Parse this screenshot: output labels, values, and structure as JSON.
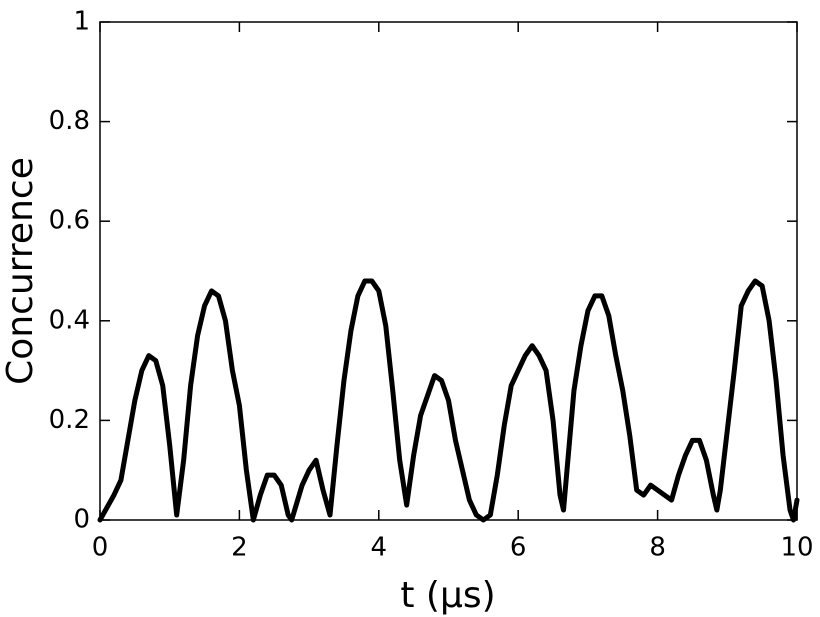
{
  "chart_data": {
    "type": "line",
    "xlabel": "t (μs)",
    "ylabel": "Concurrence",
    "x": [
      0,
      0.2,
      0.3,
      0.4,
      0.5,
      0.6,
      0.7,
      0.8,
      0.9,
      1.0,
      1.1,
      1.2,
      1.3,
      1.4,
      1.5,
      1.6,
      1.7,
      1.8,
      1.9,
      2.0,
      2.1,
      2.2,
      2.3,
      2.4,
      2.5,
      2.6,
      2.7,
      2.75,
      2.9,
      3.0,
      3.1,
      3.2,
      3.3,
      3.4,
      3.5,
      3.6,
      3.7,
      3.8,
      3.9,
      4.0,
      4.1,
      4.2,
      4.3,
      4.4,
      4.5,
      4.6,
      4.7,
      4.8,
      4.9,
      5.0,
      5.1,
      5.2,
      5.3,
      5.4,
      5.5,
      5.6,
      5.7,
      5.8,
      5.9,
      6.0,
      6.1,
      6.2,
      6.3,
      6.4,
      6.5,
      6.6,
      6.65,
      6.7,
      6.8,
      6.9,
      7.0,
      7.1,
      7.2,
      7.3,
      7.4,
      7.5,
      7.6,
      7.7,
      7.8,
      7.9,
      8.0,
      8.1,
      8.2,
      8.3,
      8.4,
      8.5,
      8.6,
      8.7,
      8.8,
      8.85,
      8.9,
      9.0,
      9.1,
      9.2,
      9.3,
      9.4,
      9.5,
      9.6,
      9.7,
      9.8,
      9.9,
      9.95,
      10.0
    ],
    "series": [
      {
        "color": "#000000",
        "values": [
          0.0,
          0.05,
          0.08,
          0.16,
          0.24,
          0.3,
          0.33,
          0.32,
          0.27,
          0.15,
          0.01,
          0.12,
          0.27,
          0.37,
          0.43,
          0.46,
          0.45,
          0.4,
          0.3,
          0.23,
          0.1,
          0.0,
          0.05,
          0.09,
          0.09,
          0.07,
          0.01,
          0.0,
          0.07,
          0.1,
          0.12,
          0.06,
          0.01,
          0.15,
          0.28,
          0.38,
          0.45,
          0.48,
          0.48,
          0.46,
          0.39,
          0.26,
          0.12,
          0.03,
          0.13,
          0.21,
          0.25,
          0.29,
          0.28,
          0.24,
          0.16,
          0.1,
          0.04,
          0.01,
          0.0,
          0.01,
          0.09,
          0.19,
          0.27,
          0.3,
          0.33,
          0.35,
          0.33,
          0.3,
          0.2,
          0.05,
          0.02,
          0.1,
          0.26,
          0.35,
          0.42,
          0.45,
          0.45,
          0.41,
          0.33,
          0.26,
          0.17,
          0.06,
          0.05,
          0.07,
          0.06,
          0.05,
          0.04,
          0.09,
          0.13,
          0.16,
          0.16,
          0.12,
          0.05,
          0.02,
          0.06,
          0.18,
          0.3,
          0.43,
          0.46,
          0.48,
          0.47,
          0.4,
          0.28,
          0.13,
          0.02,
          0.0,
          0.04
        ]
      }
    ],
    "xlim": [
      0,
      10
    ],
    "xticks": [
      0,
      2,
      4,
      6,
      8,
      10
    ],
    "ylim": [
      0,
      1
    ],
    "yticks": [
      0,
      0.2,
      0.4,
      0.6,
      0.8,
      1
    ]
  }
}
